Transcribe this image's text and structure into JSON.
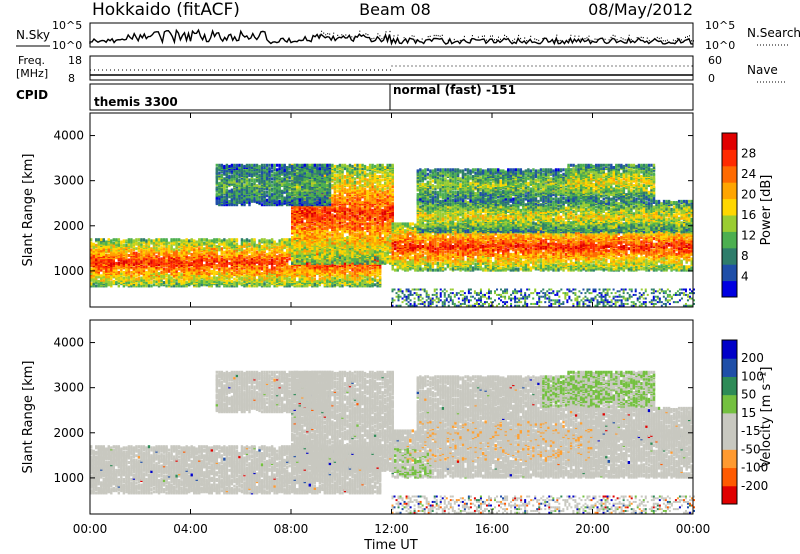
{
  "header": {
    "radar": "Hokkaido (fitACF)",
    "beam": "Beam 08",
    "date": "08/May/2012"
  },
  "top_panel": {
    "left_label": "N.Sky",
    "right_label": "N.Search",
    "left_ticks": [
      "10^5",
      "10^0"
    ],
    "right_ticks": [
      "10^5",
      "10^0"
    ]
  },
  "freq_panel": {
    "left_label_1": "Freq.",
    "left_label_2": "[MHz]",
    "right_label": "Nave",
    "left_ticks": [
      "18",
      "8"
    ],
    "right_ticks": [
      "60",
      "0"
    ]
  },
  "cpid": {
    "label": "CPID",
    "mode_1": "themis 3300",
    "mode_2": "normal (fast) -151"
  },
  "colors": {
    "scale": [
      "#0000e0",
      "#1f4fa8",
      "#2e7d6b",
      "#4caf50",
      "#9acd32",
      "#ffd700",
      "#ffa500",
      "#ff6a00",
      "#ff2a00",
      "#e00000"
    ],
    "gray": "#c8c8c0"
  },
  "chart_data": [
    {
      "type": "heatmap",
      "name": "power",
      "ylabel": "Slant Range [km]",
      "yticks": [
        "1000",
        "2000",
        "3000",
        "4000"
      ],
      "ylim": [
        200,
        4500
      ],
      "colorbar_label": "Power [dB]",
      "colorbar_ticks": [
        "28",
        "24",
        "20",
        "16",
        "12",
        "8",
        "4"
      ],
      "bands": [
        {
          "x0": 0.0,
          "x1": 11.5,
          "y0": 700,
          "y1": 1750,
          "level": 8
        },
        {
          "x0": 8.0,
          "x1": 12.0,
          "y0": 1200,
          "y1": 3400,
          "level": 8
        },
        {
          "x0": 12.0,
          "x1": 24.0,
          "y0": 1050,
          "y1": 2100,
          "level": 8
        },
        {
          "x0": 13.0,
          "x1": 24.0,
          "y0": 1900,
          "y1": 2600,
          "level": 5
        },
        {
          "x0": 5.0,
          "x1": 9.5,
          "y0": 2500,
          "y1": 3400,
          "level": 3
        },
        {
          "x0": 13.0,
          "x1": 20.0,
          "y0": 2600,
          "y1": 3300,
          "level": 4
        },
        {
          "x0": 19.0,
          "x1": 22.5,
          "y0": 2600,
          "y1": 3400,
          "level": 5
        }
      ]
    },
    {
      "type": "heatmap",
      "name": "velocity",
      "ylabel": "Slant Range [km]",
      "yticks": [
        "1000",
        "2000",
        "3000",
        "4000"
      ],
      "ylim": [
        200,
        4500
      ],
      "colorbar_label": "Velocity [m s⁻¹]",
      "colorbar_ticks": [
        "200",
        "100",
        "50",
        "15",
        "-15",
        "-50",
        "-100",
        "-200"
      ],
      "xlabel": "Time UT",
      "xticks": [
        "00:00",
        "04:00",
        "08:00",
        "12:00",
        "16:00",
        "20:00",
        "00:00"
      ],
      "xlim": [
        0,
        24
      ]
    }
  ]
}
